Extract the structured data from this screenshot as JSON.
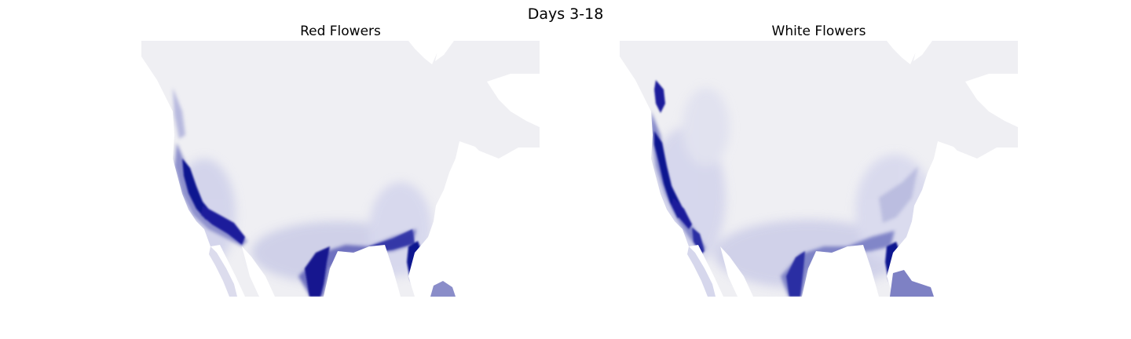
{
  "figure": {
    "title": "Days 3-18"
  },
  "panels": [
    {
      "id": "red",
      "title": "Red Flowers",
      "hotspots": [
        "pacific-coast",
        "central-valley",
        "gulf-coast",
        "florida"
      ]
    },
    {
      "id": "white",
      "title": "White Flowers",
      "hotspots": [
        "pacific-northwest",
        "pacific-coast",
        "gulf-coast",
        "florida"
      ]
    }
  ],
  "colors": {
    "land": "#efeff3",
    "low": "#d7d8ec",
    "mid": "#7b7fc6",
    "high": "#1b1f9b",
    "peak": "#0e1290",
    "water": "#ffffff"
  }
}
